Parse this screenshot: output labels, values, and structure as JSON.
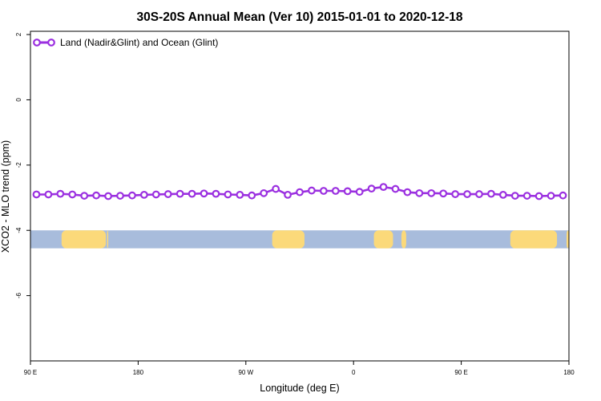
{
  "chart_data": {
    "type": "line",
    "title": "30S-20S Annual Mean (Ver 10)   2015-01-01 to 2020-12-18",
    "xlabel": "Longitude (deg E)",
    "ylabel": "XCO2 - MLO trend (ppm)",
    "xlim": [
      90,
      540
    ],
    "ylim": [
      -8,
      2.1
    ],
    "y_ticks": [
      2,
      0,
      -2,
      -4,
      -6
    ],
    "y_tick_labels": [
      "2",
      "0",
      "-2",
      "-4",
      "-6"
    ],
    "x_ticks": [
      90,
      180,
      270,
      360,
      450,
      540
    ],
    "x_tick_labels": [
      "90 E",
      "180",
      "90 W",
      "0",
      "90 E",
      "180"
    ],
    "legend_position": "top-left",
    "grid": false,
    "series": [
      {
        "name": "Land (Nadir&Glint) and Ocean (Glint)",
        "color": "#9b30e0",
        "x": [
          95,
          105,
          115,
          125,
          135,
          145,
          155,
          165,
          175,
          185,
          195,
          205,
          215,
          225,
          235,
          245,
          255,
          265,
          275,
          285,
          295,
          305,
          315,
          325,
          335,
          345,
          355,
          365,
          375,
          385,
          395,
          405,
          415,
          425,
          435,
          445,
          455,
          465,
          475,
          485,
          495,
          505,
          515,
          525,
          535
        ],
        "y": [
          -2.9,
          -2.9,
          -2.88,
          -2.9,
          -2.94,
          -2.93,
          -2.95,
          -2.94,
          -2.93,
          -2.91,
          -2.9,
          -2.89,
          -2.88,
          -2.88,
          -2.87,
          -2.88,
          -2.9,
          -2.91,
          -2.93,
          -2.86,
          -2.73,
          -2.91,
          -2.83,
          -2.78,
          -2.79,
          -2.79,
          -2.8,
          -2.82,
          -2.72,
          -2.67,
          -2.73,
          -2.83,
          -2.86,
          -2.86,
          -2.87,
          -2.89,
          -2.89,
          -2.89,
          -2.88,
          -2.91,
          -2.94,
          -2.94,
          -2.95,
          -2.94,
          -2.93
        ]
      }
    ],
    "land_ocean_strip": {
      "y_range": [
        -4.55,
        -4.0
      ],
      "ocean_color": "#a8bcdc",
      "land_color": "#fbd97a",
      "land_segments": [
        [
          116,
          153
        ],
        [
          154,
          155
        ],
        [
          292,
          319
        ],
        [
          377,
          393
        ],
        [
          400,
          404
        ],
        [
          491,
          530
        ],
        [
          538,
          540
        ]
      ]
    }
  }
}
